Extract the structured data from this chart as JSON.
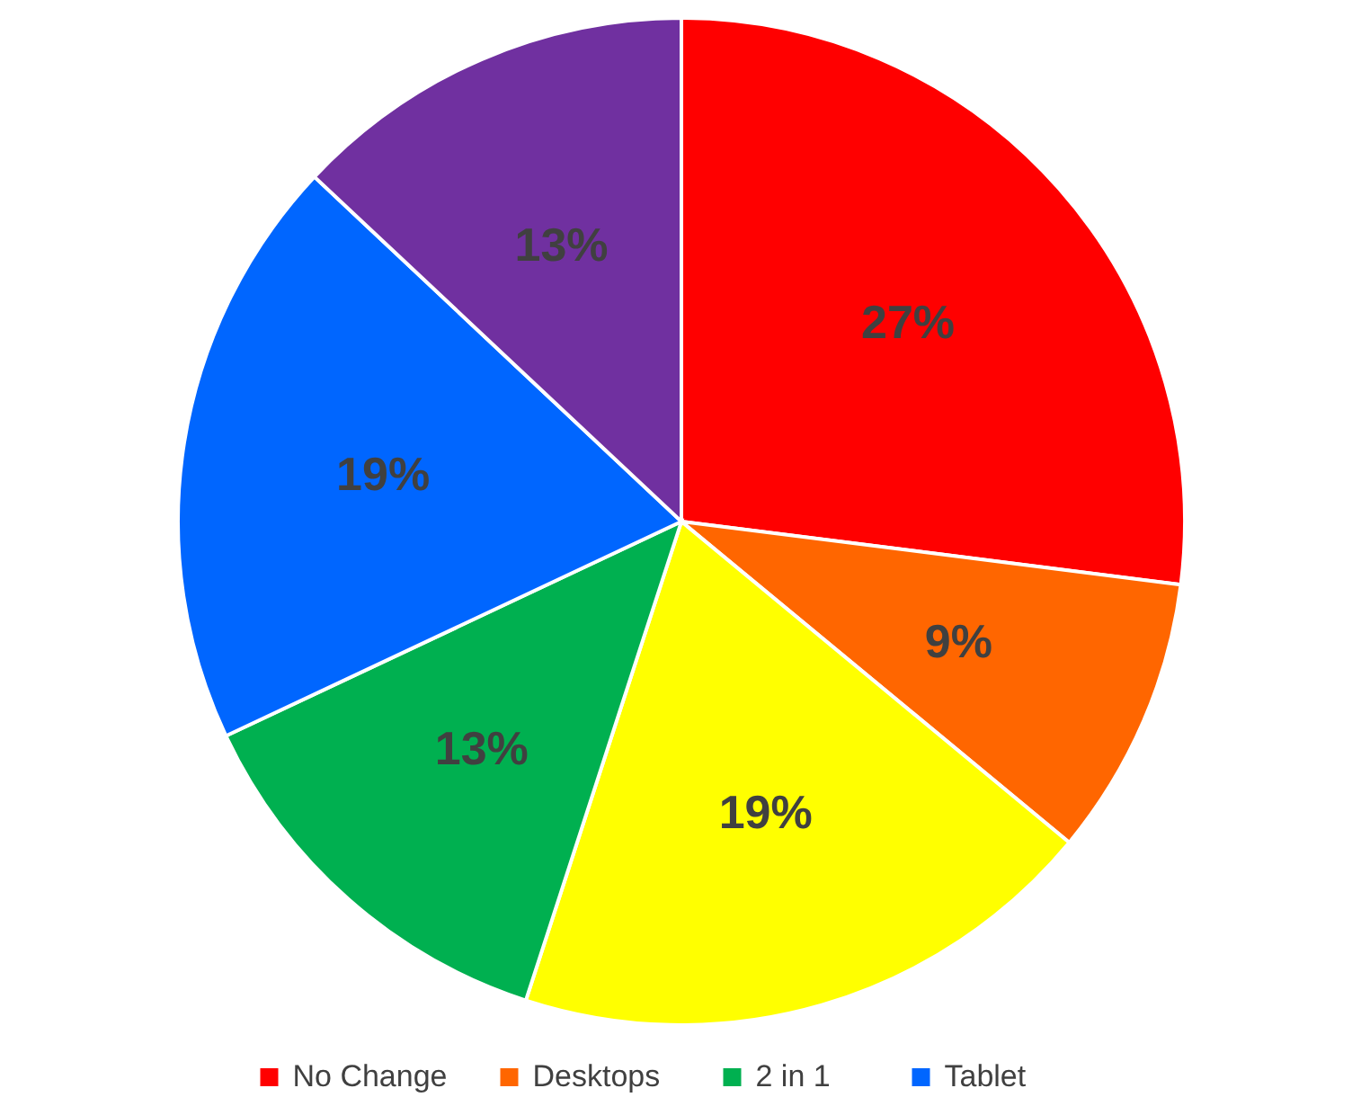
{
  "chart_data": {
    "type": "pie",
    "categories": [
      "No Change",
      "Desktops",
      null,
      "2 in 1",
      "Tablet",
      null
    ],
    "values": [
      27,
      9,
      19,
      13,
      19,
      13
    ],
    "colors": [
      "#ff0000",
      "#ff6600",
      "#ffff00",
      "#00b050",
      "#0066ff",
      "#7030a0"
    ],
    "value_labels": [
      "27%",
      "9%",
      "19%",
      "13%",
      "19%",
      "13%"
    ],
    "legend": "bottom"
  }
}
